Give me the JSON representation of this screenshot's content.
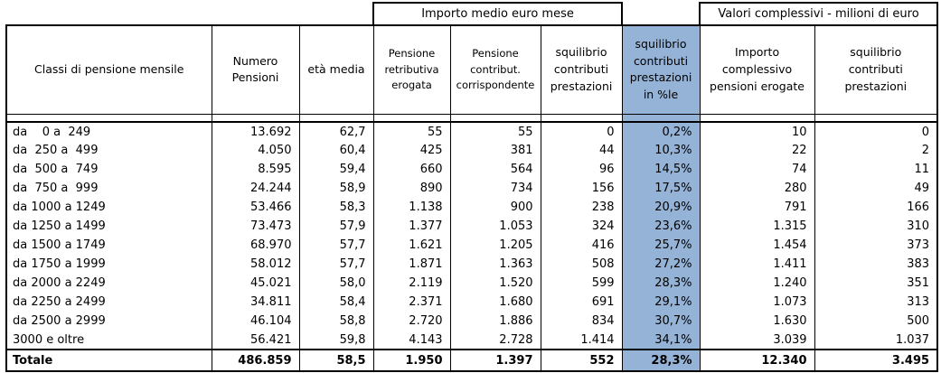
{
  "page": {
    "background": "#ffffff",
    "border_color": "#000000"
  },
  "table": {
    "highlight_color": "#95B3D7",
    "group_headers": [
      "Importo medio euro mese",
      "Valori complessivi - milioni di euro"
    ],
    "columns": [
      "Classi di pensione mensile",
      "Numero\nPensioni",
      "età media",
      "Pensione\nretributiva\nerogata",
      "Pensione\ncontribut.\ncorrispondente",
      "squilibrio\ncontributi\nprestazioni",
      "squilibrio\ncontributi\nprestazioni\nin %le",
      "Importo\ncomplessivo\npensioni erogate",
      "squilibrio\ncontributi\nprestazioni"
    ],
    "rows": [
      [
        "da    0 a  249",
        "13.692",
        "62,7",
        "55",
        "55",
        "0",
        "0,2%",
        "10",
        "0"
      ],
      [
        "da  250 a  499",
        "4.050",
        "60,4",
        "425",
        "381",
        "44",
        "10,3%",
        "22",
        "2"
      ],
      [
        "da  500 a  749",
        "8.595",
        "59,4",
        "660",
        "564",
        "96",
        "14,5%",
        "74",
        "11"
      ],
      [
        "da  750 a  999",
        "24.244",
        "58,9",
        "890",
        "734",
        "156",
        "17,5%",
        "280",
        "49"
      ],
      [
        "da 1000 a 1249",
        "53.466",
        "58,3",
        "1.138",
        "900",
        "238",
        "20,9%",
        "791",
        "166"
      ],
      [
        "da 1250 a 1499",
        "73.473",
        "57,9",
        "1.377",
        "1.053",
        "324",
        "23,6%",
        "1.315",
        "310"
      ],
      [
        "da 1500 a 1749",
        "68.970",
        "57,7",
        "1.621",
        "1.205",
        "416",
        "25,7%",
        "1.454",
        "373"
      ],
      [
        "da 1750 a 1999",
        "58.012",
        "57,7",
        "1.871",
        "1.363",
        "508",
        "27,2%",
        "1.411",
        "383"
      ],
      [
        "da 2000 a 2249",
        "45.021",
        "58,0",
        "2.119",
        "1.520",
        "599",
        "28,3%",
        "1.240",
        "351"
      ],
      [
        "da 2250 a 2499",
        "34.811",
        "58,4",
        "2.371",
        "1.680",
        "691",
        "29,1%",
        "1.073",
        "313"
      ],
      [
        "da 2500 a 2999",
        "46.104",
        "58,8",
        "2.720",
        "1.886",
        "834",
        "30,7%",
        "1.630",
        "500"
      ],
      [
        "3000 e oltre",
        "56.421",
        "59,8",
        "4.143",
        "2.728",
        "1.414",
        "34,1%",
        "3.039",
        "1.037"
      ]
    ],
    "total": [
      "Totale",
      "486.859",
      "58,5",
      "1.950",
      "1.397",
      "552",
      "28,3%",
      "12.340",
      "3.495"
    ]
  }
}
